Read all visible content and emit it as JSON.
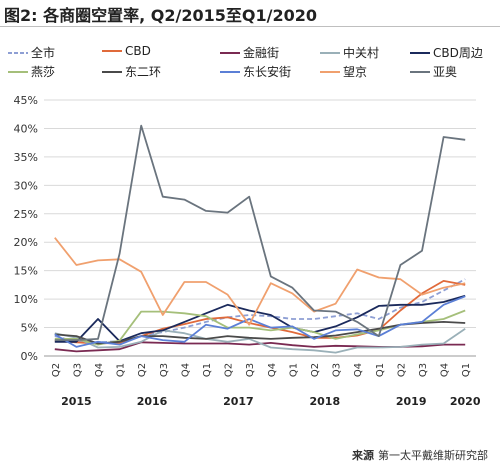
{
  "title": "图2: 各商圈空置率, Q2/2015至Q1/2020",
  "source": {
    "label": "来源",
    "text": "第一太平戴维斯研究部"
  },
  "chart_data": {
    "type": "line",
    "categories": [
      "Q2",
      "Q3",
      "Q4",
      "Q1",
      "Q2",
      "Q3",
      "Q4",
      "Q1",
      "Q2",
      "Q3",
      "Q4",
      "Q1",
      "Q2",
      "Q3",
      "Q4",
      "Q1",
      "Q2",
      "Q3",
      "Q4",
      "Q1"
    ],
    "year_labels": [
      {
        "label": "2015",
        "center": 1
      },
      {
        "label": "2016",
        "center": 4.5
      },
      {
        "label": "2017",
        "center": 8.5
      },
      {
        "label": "2018",
        "center": 12.5
      },
      {
        "label": "2019",
        "center": 16.5
      },
      {
        "label": "2020",
        "center": 19
      }
    ],
    "ylim": [
      0,
      45
    ],
    "yticks": [
      0,
      5,
      10,
      15,
      20,
      25,
      30,
      35,
      40,
      45
    ],
    "ytick_labels": [
      "0%",
      "5%",
      "10%",
      "15%",
      "20%",
      "25%",
      "30%",
      "35%",
      "40%",
      "45%"
    ],
    "grid": true,
    "legend_position": "top",
    "series": [
      {
        "name": "全市",
        "color": "#8e9fd4",
        "dash": true,
        "values": [
          3.5,
          2.5,
          2.4,
          2.6,
          3.5,
          4.2,
          5.0,
          6.0,
          6.8,
          7.2,
          7.0,
          6.5,
          6.5,
          7.0,
          7.5,
          6.5,
          8.5,
          9.5,
          11.5,
          13.5
        ]
      },
      {
        "name": "CBD",
        "color": "#e06a3a",
        "values": [
          2.7,
          2.4,
          2.2,
          2.3,
          3.5,
          4.8,
          5.6,
          6.5,
          6.8,
          5.8,
          5.0,
          4.2,
          3.2,
          3.2,
          3.6,
          4.6,
          8.0,
          11.0,
          13.2,
          12.5
        ]
      },
      {
        "name": "金融街",
        "color": "#7a2a52",
        "values": [
          1.2,
          0.8,
          1.0,
          1.2,
          2.4,
          2.3,
          2.2,
          2.2,
          2.2,
          2.0,
          2.3,
          1.9,
          1.6,
          1.8,
          1.7,
          1.6,
          1.6,
          1.7,
          2.0,
          2.0
        ]
      },
      {
        "name": "中关村",
        "color": "#9ab0b8",
        "values": [
          4.0,
          3.2,
          1.5,
          1.6,
          2.5,
          4.5,
          4.0,
          3.0,
          2.5,
          3.0,
          1.5,
          1.2,
          1.0,
          0.6,
          1.5,
          1.5,
          1.6,
          2.0,
          2.2,
          4.8
        ]
      },
      {
        "name": "CBD周边",
        "color": "#1b2a5c",
        "values": [
          2.5,
          2.5,
          6.5,
          2.6,
          4.0,
          4.5,
          6.0,
          7.5,
          9.0,
          8.0,
          7.2,
          5.0,
          4.2,
          5.2,
          6.8,
          8.8,
          9.0,
          9.0,
          9.5,
          10.6
        ]
      },
      {
        "name": "燕莎",
        "color": "#a5bf7a",
        "values": [
          3.0,
          3.0,
          2.0,
          2.7,
          7.8,
          7.8,
          7.5,
          7.0,
          5.0,
          5.0,
          4.5,
          5.0,
          4.2,
          3.0,
          3.8,
          4.5,
          5.5,
          6.0,
          6.5,
          8.0
        ]
      },
      {
        "name": "东二环",
        "color": "#4a4a4a",
        "values": [
          3.8,
          3.5,
          2.2,
          2.5,
          3.5,
          3.5,
          3.2,
          3.0,
          3.5,
          3.2,
          3.0,
          3.2,
          3.3,
          3.6,
          4.2,
          4.8,
          5.5,
          5.8,
          6.0,
          5.8
        ]
      },
      {
        "name": "东长安街",
        "color": "#5b7fd6",
        "values": [
          3.8,
          1.6,
          2.5,
          2.0,
          3.5,
          2.8,
          2.5,
          5.5,
          4.8,
          6.5,
          5.0,
          5.2,
          3.0,
          4.5,
          4.7,
          3.5,
          5.5,
          6.0,
          9.0,
          10.5
        ]
      },
      {
        "name": "望京",
        "color": "#f0a06e",
        "values": [
          20.8,
          16.0,
          16.8,
          17.0,
          14.8,
          7.2,
          13.0,
          13.0,
          10.8,
          5.5,
          12.8,
          11.0,
          7.8,
          9.2,
          15.2,
          13.8,
          13.5,
          10.8,
          12.0,
          12.8
        ]
      },
      {
        "name": "亚奥",
        "color": "#6a747e",
        "values": [
          2.8,
          2.8,
          3.0,
          18.0,
          40.5,
          28.0,
          27.5,
          25.5,
          25.2,
          28.0,
          14.0,
          12.0,
          8.0,
          7.8,
          6.0,
          3.5,
          16.0,
          18.5,
          38.5,
          38.0
        ]
      }
    ]
  }
}
